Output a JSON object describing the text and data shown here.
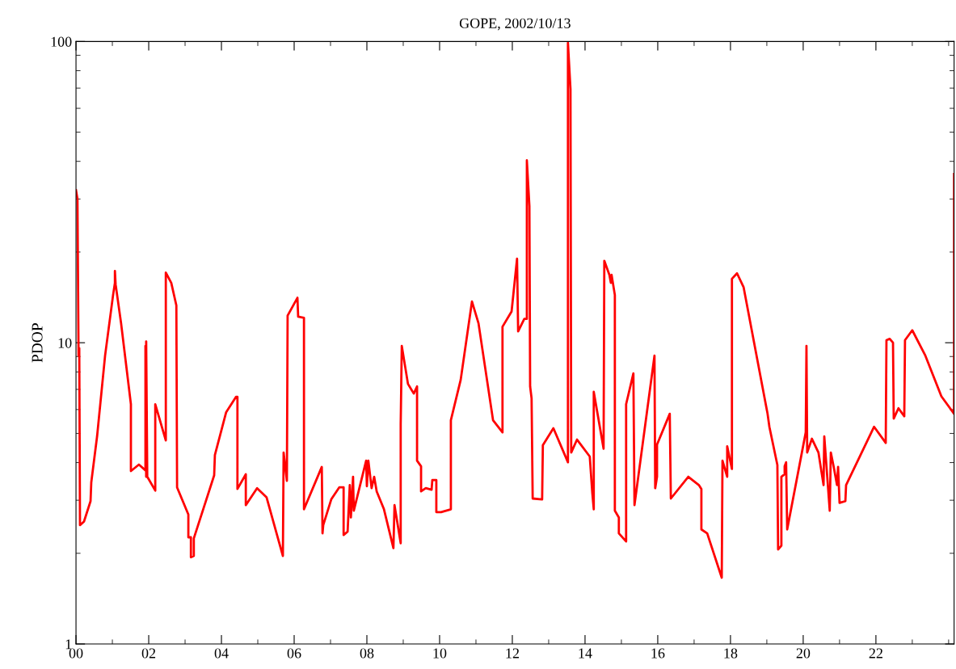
{
  "chart_data": {
    "type": "line",
    "title": "GOPE, 2002/10/13",
    "ylabel": "PDOP",
    "log": true,
    "xlim": [
      0,
      24.15
    ],
    "ylim": [
      1,
      100
    ],
    "xticks": [
      {
        "value": 0,
        "label": "00"
      },
      {
        "value": 2,
        "label": "02"
      },
      {
        "value": 4,
        "label": "04"
      },
      {
        "value": 6,
        "label": "06"
      },
      {
        "value": 8,
        "label": "08"
      },
      {
        "value": 10,
        "label": "10"
      },
      {
        "value": 12,
        "label": "12"
      },
      {
        "value": 14,
        "label": "14"
      },
      {
        "value": 16,
        "label": "16"
      },
      {
        "value": 18,
        "label": "18"
      },
      {
        "value": 20,
        "label": "20"
      },
      {
        "value": 22,
        "label": "22"
      }
    ],
    "yticks": [
      1,
      10,
      100
    ],
    "grid": false,
    "marker": "none",
    "line_style": "solid",
    "series": [
      {
        "color": "#ff0000",
        "x": [
          0,
          0.04,
          0.07,
          0.09,
          0.11,
          0.22,
          0.4,
          0.42,
          0.58,
          0.8,
          1.02,
          1.07,
          1.07,
          1.09,
          1.24,
          1.51,
          1.51,
          1.73,
          1.91,
          1.91,
          1.93,
          1.93,
          1.96,
          2.18,
          2.18,
          2.47,
          2.47,
          2.62,
          2.76,
          2.78,
          3.09,
          3.09,
          3.16,
          3.16,
          3.24,
          3.24,
          3.8,
          3.82,
          4.13,
          4.4,
          4.44,
          4.44,
          4.67,
          4.67,
          4.98,
          5.24,
          5.69,
          5.71,
          5.8,
          5.82,
          6.09,
          6.11,
          6.27,
          6.27,
          6.76,
          6.78,
          6.8,
          7.02,
          7.24,
          7.36,
          7.36,
          7.47,
          7.53,
          7.56,
          7.62,
          7.64,
          7.98,
          8.0,
          8.04,
          8.13,
          8.2,
          8.27,
          8.47,
          8.73,
          8.76,
          8.93,
          8.93,
          8.96,
          9.13,
          9.29,
          9.38,
          9.38,
          9.49,
          9.49,
          9.62,
          9.78,
          9.8,
          9.91,
          9.91,
          10.04,
          10.31,
          10.31,
          10.58,
          10.89,
          11.07,
          11.47,
          11.73,
          11.73,
          11.98,
          12.13,
          12.16,
          12.33,
          12.4,
          12.4,
          12.47,
          12.49,
          12.53,
          12.56,
          12.82,
          12.84,
          13.13,
          13.53,
          13.53,
          13.6,
          13.62,
          13.78,
          14.13,
          14.2,
          14.24,
          14.24,
          14.51,
          14.53,
          14.67,
          14.71,
          14.73,
          14.82,
          14.82,
          14.93,
          14.93,
          15.13,
          15.13,
          15.33,
          15.36,
          15.91,
          15.93,
          15.98,
          15.98,
          16.33,
          16.36,
          16.84,
          17.13,
          17.2,
          17.2,
          17.36,
          17.76,
          17.78,
          17.91,
          17.91,
          18.04,
          18.04,
          18.18,
          18.36,
          19.02,
          19.07,
          19.29,
          19.31,
          19.4,
          19.4,
          19.49,
          19.49,
          19.53,
          19.56,
          20.07,
          20.09,
          20.11,
          20.24,
          20.42,
          20.56,
          20.58,
          20.73,
          20.76,
          20.84,
          20.93,
          20.96,
          21.0,
          21.16,
          21.18,
          21.95,
          22.27,
          22.29,
          22.38,
          22.47,
          22.49,
          22.62,
          22.78,
          22.8,
          23.0,
          23.36,
          23.8,
          24.15,
          24.15
        ],
        "values": [
          32.1,
          30,
          9.06,
          9.6,
          2.48,
          2.55,
          2.98,
          3.44,
          4.89,
          9.06,
          14.4,
          15.8,
          17.3,
          15.6,
          11.6,
          6.25,
          3.75,
          3.94,
          3.77,
          9.76,
          3.59,
          10.1,
          3.59,
          3.23,
          6.25,
          4.74,
          17.1,
          15.8,
          13.3,
          3.31,
          2.69,
          2.26,
          2.26,
          1.94,
          1.96,
          2.24,
          3.63,
          4.24,
          5.88,
          6.61,
          6.61,
          3.27,
          3.66,
          2.89,
          3.29,
          3.07,
          1.96,
          4.32,
          3.48,
          12.3,
          14.1,
          12.2,
          12.1,
          2.8,
          3.87,
          2.33,
          2.48,
          3.02,
          3.31,
          3.31,
          2.3,
          2.36,
          3.37,
          2.63,
          3.59,
          2.77,
          4.06,
          3.34,
          4.06,
          3.29,
          3.59,
          3.21,
          2.8,
          2.08,
          2.89,
          2.16,
          5.36,
          9.76,
          7.3,
          6.78,
          7.16,
          4.06,
          3.89,
          3.21,
          3.29,
          3.25,
          3.5,
          3.5,
          2.74,
          2.74,
          2.8,
          5.53,
          7.53,
          13.7,
          11.6,
          5.53,
          5.04,
          11.3,
          12.7,
          19.0,
          10.9,
          12.0,
          12.0,
          40.3,
          28.4,
          7.16,
          6.53,
          3.04,
          3.02,
          4.57,
          5.2,
          4.01,
          99,
          69.5,
          4.32,
          4.77,
          4.19,
          3.17,
          2.8,
          6.87,
          4.45,
          18.7,
          16.8,
          15.8,
          16.8,
          14.4,
          2.77,
          2.63,
          2.33,
          2.19,
          6.25,
          7.91,
          2.89,
          9.06,
          3.29,
          3.59,
          4.59,
          5.81,
          3.04,
          3.59,
          3.37,
          3.27,
          2.4,
          2.33,
          1.66,
          4.06,
          3.59,
          4.53,
          3.81,
          16.3,
          17.0,
          15.3,
          5.81,
          5.26,
          3.93,
          2.06,
          2.12,
          3.59,
          3.66,
          3.89,
          4.01,
          2.4,
          5.04,
          9.76,
          4.32,
          4.8,
          4.32,
          3.37,
          4.89,
          2.77,
          4.32,
          3.87,
          3.37,
          3.87,
          2.94,
          2.98,
          3.37,
          5.26,
          4.65,
          10.2,
          10.3,
          10.0,
          5.6,
          6.06,
          5.7,
          10.2,
          11.0,
          9.06,
          6.64,
          5.81,
          36.3
        ]
      }
    ]
  }
}
